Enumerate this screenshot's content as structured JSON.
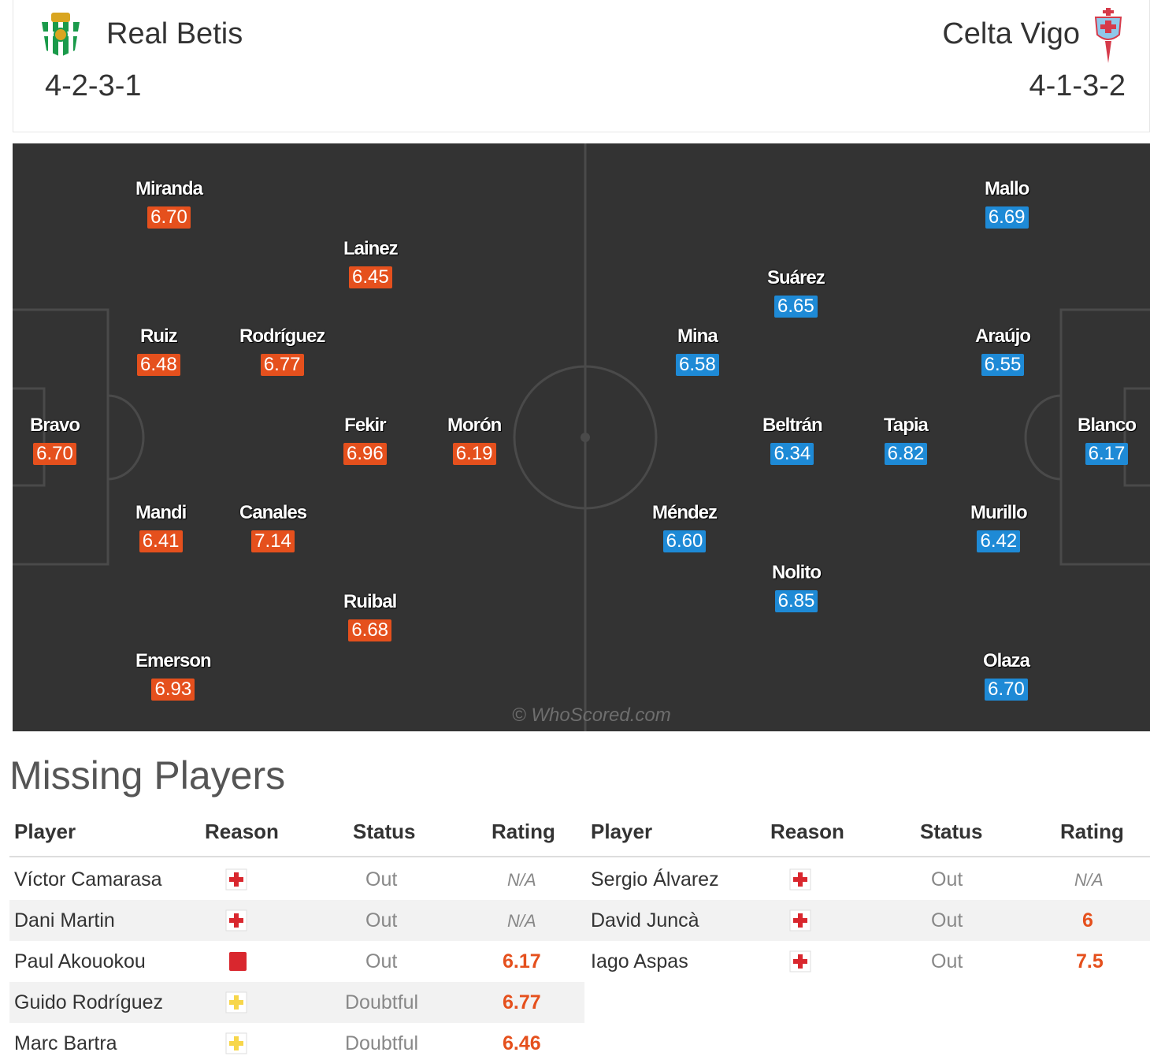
{
  "home": {
    "name": "Real Betis",
    "formation": "4-2-3-1",
    "crest_icon": "real-betis-crest",
    "color": "#e5501d",
    "players": [
      {
        "name": "Bravo",
        "rating": "6.70"
      },
      {
        "name": "Miranda",
        "rating": "6.70"
      },
      {
        "name": "Ruiz",
        "rating": "6.48"
      },
      {
        "name": "Mandi",
        "rating": "6.41"
      },
      {
        "name": "Emerson",
        "rating": "6.93"
      },
      {
        "name": "Rodríguez",
        "rating": "6.77"
      },
      {
        "name": "Canales",
        "rating": "7.14"
      },
      {
        "name": "Lainez",
        "rating": "6.45"
      },
      {
        "name": "Fekir",
        "rating": "6.96"
      },
      {
        "name": "Ruibal",
        "rating": "6.68"
      },
      {
        "name": "Morón",
        "rating": "6.19"
      }
    ]
  },
  "away": {
    "name": "Celta Vigo",
    "formation": "4-1-3-2",
    "crest_icon": "celta-vigo-crest",
    "color": "#1e8ad6",
    "players": [
      {
        "name": "Blanco",
        "rating": "6.17"
      },
      {
        "name": "Mallo",
        "rating": "6.69"
      },
      {
        "name": "Araújo",
        "rating": "6.55"
      },
      {
        "name": "Murillo",
        "rating": "6.42"
      },
      {
        "name": "Olaza",
        "rating": "6.70"
      },
      {
        "name": "Tapia",
        "rating": "6.82"
      },
      {
        "name": "Suárez",
        "rating": "6.65"
      },
      {
        "name": "Beltrán",
        "rating": "6.34"
      },
      {
        "name": "Nolito",
        "rating": "6.85"
      },
      {
        "name": "Mina",
        "rating": "6.58"
      },
      {
        "name": "Méndez",
        "rating": "6.60"
      }
    ]
  },
  "watermark": "© WhoScored.com",
  "missing": {
    "title": "Missing Players",
    "headers": {
      "player": "Player",
      "reason": "Reason",
      "status": "Status",
      "rating": "Rating"
    },
    "home": [
      {
        "player": "Víctor Camarasa",
        "reason": "injury-icon",
        "status": "Out",
        "rating": "N/A"
      },
      {
        "player": "Dani Martin",
        "reason": "injury-icon",
        "status": "Out",
        "rating": "N/A"
      },
      {
        "player": "Paul Akouokou",
        "reason": "red-card-icon",
        "status": "Out",
        "rating": "6.17"
      },
      {
        "player": "Guido Rodríguez",
        "reason": "doubtful-icon",
        "status": "Doubtful",
        "rating": "6.77"
      },
      {
        "player": "Marc Bartra",
        "reason": "doubtful-icon",
        "status": "Doubtful",
        "rating": "6.46"
      }
    ],
    "away": [
      {
        "player": "Sergio Álvarez",
        "reason": "injury-icon",
        "status": "Out",
        "rating": "N/A"
      },
      {
        "player": "David Juncà",
        "reason": "injury-icon",
        "status": "Out",
        "rating": "6"
      },
      {
        "player": "Iago Aspas",
        "reason": "injury-icon",
        "status": "Out",
        "rating": "7.5"
      }
    ]
  }
}
